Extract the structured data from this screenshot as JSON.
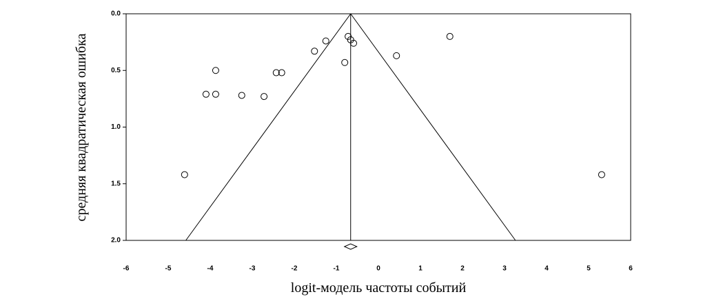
{
  "chart_data": {
    "type": "scatter",
    "xlabel": "logit-модель частоты событий",
    "ylabel": "средняя квадратическая ошибка",
    "x": [
      -4.61,
      -3.87,
      -4.1,
      -3.87,
      -3.25,
      -2.72,
      -2.43,
      -2.3,
      -1.52,
      -1.25,
      -0.8,
      -0.72,
      -0.66,
      -0.59,
      0.43,
      1.7,
      5.31
    ],
    "values": [
      1.42,
      0.5,
      0.71,
      0.71,
      0.72,
      0.73,
      0.52,
      0.52,
      0.33,
      0.24,
      0.43,
      0.2,
      0.23,
      0.26,
      0.37,
      0.2,
      1.42
    ],
    "color": "#000000",
    "pooled_estimate": -0.66,
    "funnel_limits": [
      -4.58,
      3.26
    ],
    "xlim": [
      -6,
      6
    ],
    "xticks": [
      -6,
      -5,
      -4,
      -3,
      -2,
      -1,
      0,
      1,
      2,
      3,
      4,
      5,
      6
    ],
    "ylim": [
      0,
      2
    ],
    "y_inverted": true,
    "yticks": [
      {
        "value": 0,
        "label": "0.0"
      },
      {
        "value": 0.5,
        "label": "0.5"
      },
      {
        "value": 1,
        "label": "1.0"
      },
      {
        "value": 1.5,
        "label": "1.5"
      },
      {
        "value": 2,
        "label": "2.0"
      }
    ]
  }
}
